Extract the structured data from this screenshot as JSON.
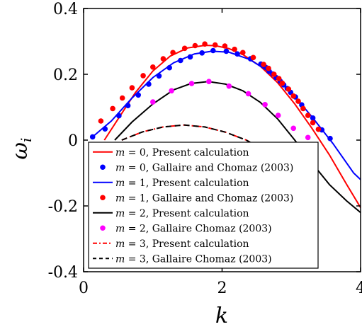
{
  "chart_data": {
    "type": "line",
    "xlabel": "k",
    "ylabel": "ω_i",
    "xlim": [
      0,
      4
    ],
    "ylim": [
      -0.4,
      0.4
    ],
    "xticks": [
      0,
      2,
      4
    ],
    "xtick_labels": [
      "0",
      "2",
      "4"
    ],
    "yticks": [
      -0.4,
      -0.2,
      0,
      0.2,
      0.4
    ],
    "ytick_labels": [
      "-0.4",
      "-0.2",
      "0",
      "0.2",
      "0.4"
    ],
    "grid": false,
    "legend_position": "center-bottom",
    "series": [
      {
        "name": "m = 0, Present calculation",
        "mark": "line",
        "color": "#ff0000",
        "dash": "solid",
        "x": [
          0.3,
          0.5,
          0.75,
          1.0,
          1.25,
          1.5,
          1.75,
          1.9,
          2.1,
          2.3,
          2.55,
          2.8,
          3.05,
          3.3,
          3.55,
          3.8,
          4.0
        ],
        "y": [
          0.0,
          0.065,
          0.145,
          0.21,
          0.255,
          0.28,
          0.288,
          0.287,
          0.278,
          0.26,
          0.225,
          0.175,
          0.11,
          0.035,
          -0.045,
          -0.135,
          -0.205
        ]
      },
      {
        "name": "m = 0, Gallaire and Chomaz (2003)",
        "mark": "points",
        "color": "#0000ff",
        "x": [
          0.13,
          0.31,
          0.51,
          0.64,
          0.79,
          0.94,
          1.09,
          1.24,
          1.4,
          1.54,
          1.71,
          1.87,
          2.06,
          2.22,
          2.41,
          2.56,
          2.63,
          2.68,
          2.73,
          2.78,
          2.84,
          2.89,
          2.94,
          2.99,
          3.06,
          3.15,
          3.31,
          3.44,
          3.56
        ],
        "y": [
          0.01,
          0.034,
          0.074,
          0.105,
          0.137,
          0.17,
          0.195,
          0.22,
          0.242,
          0.253,
          0.265,
          0.272,
          0.27,
          0.262,
          0.247,
          0.231,
          0.221,
          0.209,
          0.201,
          0.19,
          0.179,
          0.168,
          0.157,
          0.145,
          0.131,
          0.107,
          0.067,
          0.031,
          0.005
        ]
      },
      {
        "name": "m = 1, Present calculation",
        "mark": "line",
        "color": "#0000ff",
        "dash": "solid",
        "x": [
          0.12,
          0.4,
          0.7,
          1.0,
          1.3,
          1.6,
          1.85,
          2.1,
          2.4,
          2.7,
          3.0,
          3.3,
          3.6,
          3.9,
          4.0
        ],
        "y": [
          0.008,
          0.058,
          0.128,
          0.19,
          0.235,
          0.262,
          0.27,
          0.267,
          0.245,
          0.205,
          0.145,
          0.07,
          -0.01,
          -0.1,
          -0.12
        ]
      },
      {
        "name": "m = 1, Gallaire and Chomaz (2003)",
        "mark": "points",
        "color": "#ff0000",
        "x": [
          0.25,
          0.42,
          0.56,
          0.7,
          0.86,
          1.0,
          1.15,
          1.29,
          1.46,
          1.61,
          1.75,
          1.9,
          2.04,
          2.18,
          2.3,
          2.45,
          2.6,
          2.67,
          2.75,
          2.82,
          2.87,
          2.96,
          3.03,
          3.1,
          3.17,
          3.24,
          3.31,
          3.39
        ],
        "y": [
          0.058,
          0.096,
          0.128,
          0.159,
          0.196,
          0.222,
          0.247,
          0.266,
          0.279,
          0.287,
          0.292,
          0.289,
          0.286,
          0.276,
          0.266,
          0.251,
          0.23,
          0.218,
          0.2,
          0.187,
          0.173,
          0.155,
          0.134,
          0.118,
          0.096,
          0.075,
          0.053,
          0.033
        ]
      },
      {
        "name": "m = 2, Present calculation",
        "mark": "line",
        "color": "#000000",
        "dash": "solid",
        "x": [
          0.45,
          0.7,
          1.0,
          1.3,
          1.55,
          1.8,
          2.05,
          2.3,
          2.55,
          2.8,
          3.05,
          3.3,
          3.55,
          3.8,
          4.0
        ],
        "y": [
          0.0,
          0.055,
          0.11,
          0.153,
          0.172,
          0.178,
          0.17,
          0.15,
          0.115,
          0.065,
          0.0,
          -0.07,
          -0.135,
          -0.185,
          -0.22
        ]
      },
      {
        "name": "m = 2, Gallaire Chomaz (2003)",
        "mark": "points",
        "color": "#ff00ff",
        "x": [
          1.0,
          1.27,
          1.56,
          1.81,
          2.1,
          2.38,
          2.62,
          2.81,
          3.03,
          3.24
        ],
        "y": [
          0.116,
          0.15,
          0.172,
          0.178,
          0.164,
          0.141,
          0.108,
          0.075,
          0.036,
          0.008
        ]
      },
      {
        "name": "m = 3, Present calculation",
        "mark": "line",
        "color": "#ff0000",
        "dash": "dashdot",
        "x": [
          0.55,
          0.85,
          1.15,
          1.45,
          1.75,
          2.05,
          2.35,
          2.6
        ],
        "y": [
          0.0,
          0.025,
          0.04,
          0.046,
          0.04,
          0.024,
          0.0,
          -0.03
        ]
      },
      {
        "name": "m = 3, Gallaire Chomaz (2003)",
        "mark": "line",
        "color": "#000000",
        "dash": "dashed",
        "x": [
          0.55,
          0.85,
          1.15,
          1.45,
          1.75,
          2.05,
          2.35,
          2.6
        ],
        "y": [
          0.0,
          0.025,
          0.04,
          0.046,
          0.04,
          0.024,
          0.0,
          -0.03
        ]
      }
    ],
    "legend": [
      {
        "math": "m",
        "rest": " = 0, Present calculation",
        "kind": "line",
        "color": "#ff0000",
        "dash": "solid"
      },
      {
        "math": "m",
        "rest": " = 0, Gallaire and Chomaz (2003)",
        "kind": "dot",
        "color": "#0000ff"
      },
      {
        "math": "m",
        "rest": " = 1, Present calculation",
        "kind": "line",
        "color": "#0000ff",
        "dash": "solid"
      },
      {
        "math": "m",
        "rest": " = 1, Gallaire and Chomaz (2003)",
        "kind": "dot",
        "color": "#ff0000"
      },
      {
        "math": "m",
        "rest": " = 2, Present calculation",
        "kind": "line",
        "color": "#000000",
        "dash": "solid"
      },
      {
        "math": "m",
        "rest": " = 2, Gallaire Chomaz (2003)",
        "kind": "dot",
        "color": "#ff00ff"
      },
      {
        "math": "m",
        "rest": " = 3, Present calculation",
        "kind": "line",
        "color": "#ff0000",
        "dash": "dashdot"
      },
      {
        "math": "m",
        "rest": " = 3, Gallaire Chomaz (2003)",
        "kind": "line",
        "color": "#000000",
        "dash": "dashed"
      }
    ]
  }
}
